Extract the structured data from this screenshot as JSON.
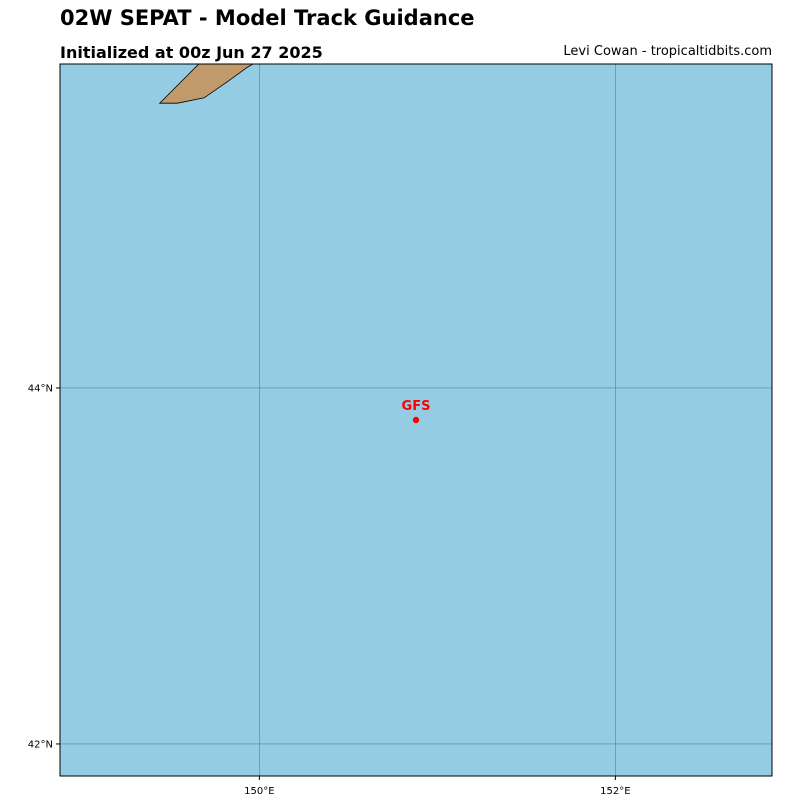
{
  "header": {
    "title": "02W SEPAT - Model Track Guidance",
    "subtitle": "Initialized at 00z Jun 27 2025",
    "credit": "Levi Cowan - tropicaltidbits.com"
  },
  "colors": {
    "ocean": "#94cde3",
    "land": "#c19a6b",
    "grid": "#5f7f8a",
    "gfs": "#ff0000"
  },
  "map": {
    "lon_min": 148.88,
    "lon_max": 152.88,
    "lat_min": 41.82,
    "lat_max": 45.82,
    "gridlines": {
      "lons": [
        150,
        152
      ],
      "lats": [
        42,
        44
      ]
    },
    "lon_labels": [
      {
        "value": 150,
        "text": "150°E"
      },
      {
        "value": 152,
        "text": "152°E"
      }
    ],
    "lat_labels": [
      {
        "value": 44,
        "text": "44°N"
      },
      {
        "value": 42,
        "text": "42°N"
      }
    ],
    "land": [
      {
        "lon": 149.44,
        "lat": 45.6
      },
      {
        "lon": 149.54,
        "lat": 45.6
      },
      {
        "lon": 149.69,
        "lat": 45.63
      },
      {
        "lon": 149.82,
        "lat": 45.72
      },
      {
        "lon": 149.93,
        "lat": 45.8
      },
      {
        "lon": 149.98,
        "lat": 45.83
      },
      {
        "lon": 149.67,
        "lat": 45.83
      }
    ],
    "models": [
      {
        "name": "GFS",
        "lon": 150.88,
        "lat": 43.82
      }
    ]
  }
}
